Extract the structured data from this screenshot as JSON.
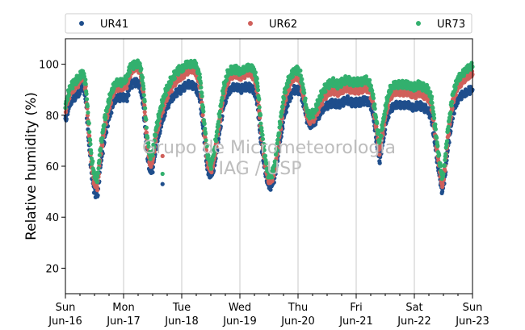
{
  "chart_data": {
    "type": "scatter",
    "title": "",
    "xlabel": "",
    "ylabel": "Relative humidity (%)",
    "ylim": [
      10,
      110
    ],
    "yticks": [
      20,
      40,
      60,
      80,
      100
    ],
    "xlim": [
      "2019-06-16T00:00",
      "2019-06-23T00:00"
    ],
    "xticks": [
      {
        "day": "Sun",
        "date": "Jun-16"
      },
      {
        "day": "Mon",
        "date": "Jun-17"
      },
      {
        "day": "Tue",
        "date": "Jun-18"
      },
      {
        "day": "Wed",
        "date": "Jun-19"
      },
      {
        "day": "Thu",
        "date": "Jun-20"
      },
      {
        "day": "Fri",
        "date": "Jun-21"
      },
      {
        "day": "Sat",
        "date": "Jun-22"
      },
      {
        "day": "Sun",
        "date": "Jun-23"
      }
    ],
    "minor_ticks_per_day": 4,
    "grid": "vertical-major",
    "legend_position": "top",
    "watermark": [
      "Grupo de Micrometeorologia",
      "IAG / USP"
    ],
    "series": [
      {
        "name": "UR41",
        "color": "#1f4e8c",
        "marker": "circle",
        "points": [
          [
            0.0,
            78
          ],
          [
            0.08,
            85
          ],
          [
            0.16,
            87
          ],
          [
            0.24,
            89
          ],
          [
            0.3,
            92
          ],
          [
            0.35,
            86
          ],
          [
            0.4,
            70
          ],
          [
            0.45,
            57
          ],
          [
            0.5,
            50
          ],
          [
            0.55,
            48
          ],
          [
            0.6,
            60
          ],
          [
            0.68,
            72
          ],
          [
            0.76,
            80
          ],
          [
            0.84,
            86
          ],
          [
            0.9,
            87
          ],
          [
            0.96,
            87
          ],
          [
            1.0,
            87
          ],
          [
            1.06,
            87
          ],
          [
            1.12,
            92
          ],
          [
            1.2,
            93
          ],
          [
            1.28,
            92
          ],
          [
            1.34,
            84
          ],
          [
            1.4,
            66
          ],
          [
            1.45,
            58
          ],
          [
            1.5,
            59
          ],
          [
            1.56,
            68
          ],
          [
            1.64,
            76
          ],
          [
            1.72,
            82
          ],
          [
            1.8,
            86
          ],
          [
            1.88,
            88
          ],
          [
            1.96,
            90
          ],
          [
            2.0,
            90
          ],
          [
            2.08,
            92
          ],
          [
            2.16,
            92
          ],
          [
            2.24,
            91
          ],
          [
            2.32,
            86
          ],
          [
            2.38,
            72
          ],
          [
            2.44,
            59
          ],
          [
            2.5,
            56
          ],
          [
            2.56,
            60
          ],
          [
            2.64,
            72
          ],
          [
            2.72,
            84
          ],
          [
            2.8,
            89
          ],
          [
            2.88,
            91
          ],
          [
            2.96,
            91
          ],
          [
            3.0,
            90
          ],
          [
            3.08,
            91
          ],
          [
            3.16,
            91
          ],
          [
            3.24,
            90
          ],
          [
            3.3,
            85
          ],
          [
            3.36,
            70
          ],
          [
            3.42,
            60
          ],
          [
            3.48,
            53
          ],
          [
            3.54,
            52
          ],
          [
            3.6,
            56
          ],
          [
            3.68,
            68
          ],
          [
            3.76,
            80
          ],
          [
            3.84,
            86
          ],
          [
            3.92,
            90
          ],
          [
            4.0,
            90
          ],
          [
            4.04,
            89
          ],
          [
            4.08,
            86
          ],
          [
            4.12,
            82
          ],
          [
            4.16,
            78
          ],
          [
            4.2,
            76
          ],
          [
            4.28,
            77
          ],
          [
            4.36,
            80
          ],
          [
            4.44,
            83
          ],
          [
            4.52,
            84
          ],
          [
            4.6,
            85
          ],
          [
            4.68,
            84
          ],
          [
            4.76,
            85
          ],
          [
            4.84,
            86
          ],
          [
            4.92,
            85
          ],
          [
            5.0,
            85
          ],
          [
            5.08,
            85
          ],
          [
            5.16,
            86
          ],
          [
            5.22,
            85
          ],
          [
            5.28,
            82
          ],
          [
            5.34,
            72
          ],
          [
            5.4,
            62
          ],
          [
            5.46,
            70
          ],
          [
            5.52,
            78
          ],
          [
            5.58,
            82
          ],
          [
            5.66,
            84
          ],
          [
            5.74,
            84
          ],
          [
            5.82,
            84
          ],
          [
            5.9,
            84
          ],
          [
            5.96,
            83
          ],
          [
            6.0,
            83
          ],
          [
            6.08,
            84
          ],
          [
            6.16,
            83
          ],
          [
            6.24,
            82
          ],
          [
            6.3,
            78
          ],
          [
            6.36,
            68
          ],
          [
            6.42,
            58
          ],
          [
            6.48,
            50
          ],
          [
            6.52,
            55
          ],
          [
            6.58,
            68
          ],
          [
            6.66,
            80
          ],
          [
            6.74,
            86
          ],
          [
            6.82,
            88
          ],
          [
            6.9,
            89
          ],
          [
            6.96,
            90
          ],
          [
            7.0,
            90
          ]
        ],
        "outliers": [
          [
            1.67,
            53
          ]
        ]
      },
      {
        "name": "UR62",
        "color": "#d0605b",
        "marker": "circle",
        "points": [
          [
            0.0,
            82
          ],
          [
            0.08,
            89
          ],
          [
            0.16,
            91
          ],
          [
            0.24,
            93
          ],
          [
            0.3,
            96
          ],
          [
            0.35,
            90
          ],
          [
            0.4,
            74
          ],
          [
            0.45,
            60
          ],
          [
            0.5,
            53
          ],
          [
            0.55,
            52
          ],
          [
            0.6,
            64
          ],
          [
            0.68,
            76
          ],
          [
            0.76,
            84
          ],
          [
            0.84,
            90
          ],
          [
            0.9,
            91
          ],
          [
            0.96,
            91
          ],
          [
            1.0,
            91
          ],
          [
            1.06,
            92
          ],
          [
            1.12,
            97
          ],
          [
            1.2,
            99
          ],
          [
            1.28,
            98
          ],
          [
            1.34,
            89
          ],
          [
            1.4,
            70
          ],
          [
            1.45,
            61
          ],
          [
            1.5,
            62
          ],
          [
            1.56,
            72
          ],
          [
            1.64,
            80
          ],
          [
            1.72,
            86
          ],
          [
            1.8,
            90
          ],
          [
            1.88,
            93
          ],
          [
            1.96,
            95
          ],
          [
            2.0,
            95
          ],
          [
            2.08,
            97
          ],
          [
            2.16,
            98
          ],
          [
            2.24,
            97
          ],
          [
            2.32,
            91
          ],
          [
            2.38,
            76
          ],
          [
            2.44,
            62
          ],
          [
            2.5,
            58
          ],
          [
            2.56,
            63
          ],
          [
            2.64,
            76
          ],
          [
            2.72,
            88
          ],
          [
            2.8,
            94
          ],
          [
            2.88,
            96
          ],
          [
            2.96,
            96
          ],
          [
            3.0,
            95
          ],
          [
            3.08,
            96
          ],
          [
            3.16,
            97
          ],
          [
            3.24,
            95
          ],
          [
            3.3,
            90
          ],
          [
            3.36,
            74
          ],
          [
            3.42,
            63
          ],
          [
            3.48,
            55
          ],
          [
            3.54,
            54
          ],
          [
            3.6,
            59
          ],
          [
            3.68,
            72
          ],
          [
            3.76,
            85
          ],
          [
            3.84,
            91
          ],
          [
            3.92,
            95
          ],
          [
            4.0,
            95
          ],
          [
            4.04,
            93
          ],
          [
            4.08,
            89
          ],
          [
            4.12,
            84
          ],
          [
            4.16,
            79
          ],
          [
            4.2,
            78
          ],
          [
            4.28,
            79
          ],
          [
            4.36,
            83
          ],
          [
            4.44,
            87
          ],
          [
            4.52,
            89
          ],
          [
            4.6,
            90
          ],
          [
            4.68,
            89
          ],
          [
            4.76,
            90
          ],
          [
            4.84,
            91
          ],
          [
            4.92,
            90
          ],
          [
            5.0,
            90
          ],
          [
            5.08,
            90
          ],
          [
            5.16,
            91
          ],
          [
            5.22,
            90
          ],
          [
            5.28,
            86
          ],
          [
            5.34,
            76
          ],
          [
            5.4,
            66
          ],
          [
            5.46,
            74
          ],
          [
            5.52,
            82
          ],
          [
            5.58,
            87
          ],
          [
            5.66,
            89
          ],
          [
            5.74,
            89
          ],
          [
            5.82,
            89
          ],
          [
            5.9,
            89
          ],
          [
            5.96,
            88
          ],
          [
            6.0,
            88
          ],
          [
            6.08,
            89
          ],
          [
            6.16,
            88
          ],
          [
            6.24,
            87
          ],
          [
            6.3,
            83
          ],
          [
            6.36,
            72
          ],
          [
            6.42,
            61
          ],
          [
            6.48,
            52
          ],
          [
            6.52,
            58
          ],
          [
            6.58,
            72
          ],
          [
            6.66,
            85
          ],
          [
            6.74,
            91
          ],
          [
            6.82,
            93
          ],
          [
            6.9,
            95
          ],
          [
            6.96,
            96
          ],
          [
            7.0,
            96
          ]
        ],
        "outliers": [
          [
            1.67,
            64
          ]
        ]
      },
      {
        "name": "UR73",
        "color": "#33b06e",
        "marker": "circle",
        "points": [
          [
            0.0,
            84
          ],
          [
            0.08,
            91
          ],
          [
            0.16,
            93
          ],
          [
            0.24,
            95
          ],
          [
            0.3,
            97
          ],
          [
            0.35,
            92
          ],
          [
            0.4,
            77
          ],
          [
            0.45,
            63
          ],
          [
            0.5,
            56
          ],
          [
            0.55,
            55
          ],
          [
            0.6,
            67
          ],
          [
            0.68,
            79
          ],
          [
            0.76,
            87
          ],
          [
            0.84,
            92
          ],
          [
            0.9,
            93
          ],
          [
            0.96,
            93
          ],
          [
            1.0,
            93
          ],
          [
            1.06,
            95
          ],
          [
            1.12,
            99
          ],
          [
            1.2,
            100
          ],
          [
            1.28,
            100
          ],
          [
            1.34,
            92
          ],
          [
            1.4,
            73
          ],
          [
            1.45,
            64
          ],
          [
            1.5,
            65
          ],
          [
            1.56,
            75
          ],
          [
            1.64,
            83
          ],
          [
            1.72,
            89
          ],
          [
            1.8,
            93
          ],
          [
            1.88,
            96
          ],
          [
            1.96,
            98
          ],
          [
            2.0,
            98
          ],
          [
            2.08,
            100
          ],
          [
            2.16,
            100
          ],
          [
            2.24,
            100
          ],
          [
            2.32,
            94
          ],
          [
            2.38,
            79
          ],
          [
            2.44,
            65
          ],
          [
            2.5,
            60
          ],
          [
            2.56,
            66
          ],
          [
            2.64,
            79
          ],
          [
            2.72,
            91
          ],
          [
            2.8,
            97
          ],
          [
            2.88,
            98
          ],
          [
            2.96,
            98
          ],
          [
            3.0,
            97
          ],
          [
            3.08,
            98
          ],
          [
            3.16,
            99
          ],
          [
            3.24,
            98
          ],
          [
            3.3,
            93
          ],
          [
            3.36,
            77
          ],
          [
            3.42,
            66
          ],
          [
            3.48,
            57
          ],
          [
            3.54,
            56
          ],
          [
            3.6,
            61
          ],
          [
            3.68,
            75
          ],
          [
            3.76,
            88
          ],
          [
            3.84,
            94
          ],
          [
            3.92,
            97
          ],
          [
            4.0,
            98
          ],
          [
            4.04,
            96
          ],
          [
            4.08,
            92
          ],
          [
            4.12,
            86
          ],
          [
            4.16,
            81
          ],
          [
            4.2,
            80
          ],
          [
            4.28,
            81
          ],
          [
            4.36,
            86
          ],
          [
            4.44,
            90
          ],
          [
            4.52,
            92
          ],
          [
            4.6,
            93
          ],
          [
            4.68,
            92
          ],
          [
            4.76,
            93
          ],
          [
            4.84,
            94
          ],
          [
            4.92,
            93
          ],
          [
            5.0,
            93
          ],
          [
            5.08,
            93
          ],
          [
            5.16,
            94
          ],
          [
            5.22,
            93
          ],
          [
            5.28,
            89
          ],
          [
            5.34,
            79
          ],
          [
            5.4,
            69
          ],
          [
            5.46,
            77
          ],
          [
            5.52,
            85
          ],
          [
            5.58,
            90
          ],
          [
            5.66,
            92
          ],
          [
            5.74,
            92
          ],
          [
            5.82,
            92
          ],
          [
            5.9,
            92
          ],
          [
            5.96,
            91
          ],
          [
            6.0,
            91
          ],
          [
            6.08,
            92
          ],
          [
            6.16,
            91
          ],
          [
            6.24,
            90
          ],
          [
            6.3,
            86
          ],
          [
            6.36,
            75
          ],
          [
            6.42,
            64
          ],
          [
            6.48,
            55
          ],
          [
            6.52,
            61
          ],
          [
            6.58,
            75
          ],
          [
            6.66,
            88
          ],
          [
            6.74,
            94
          ],
          [
            6.82,
            96
          ],
          [
            6.9,
            98
          ],
          [
            6.96,
            99
          ],
          [
            7.0,
            99
          ]
        ],
        "outliers": [
          [
            1.67,
            57
          ]
        ]
      }
    ]
  }
}
